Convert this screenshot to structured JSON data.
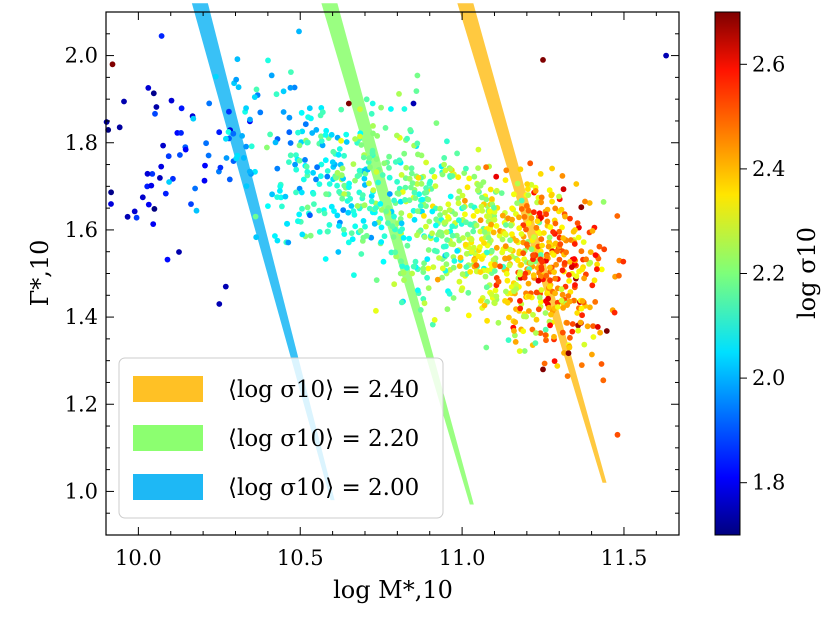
{
  "chart_data": {
    "type": "scatter",
    "xlabel": "log M*,10",
    "ylabel": "Γ*,10",
    "colorbar_label": "log σ10",
    "xlim": [
      9.9,
      11.67
    ],
    "ylim": [
      0.9,
      2.1
    ],
    "color_lim": [
      1.7,
      2.7
    ],
    "colormap": "jet",
    "xticks": [
      "10.0",
      "10.5",
      "11.0",
      "11.5"
    ],
    "yticks": [
      "1.0",
      "1.2",
      "1.4",
      "1.6",
      "1.8",
      "2.0"
    ],
    "colorbar_ticks": [
      "1.8",
      "2.0",
      "2.2",
      "2.4",
      "2.6"
    ],
    "legend_placement": "lower-left",
    "bands": [
      {
        "label": "⟨log σ10⟩ = 2.40",
        "color": "#ffc125",
        "line": [
          [
            11.01,
            2.12
          ],
          [
            11.44,
            1.02
          ]
        ]
      },
      {
        "label": "⟨log σ10⟩ = 2.20",
        "color": "#8cff70",
        "line": [
          [
            10.59,
            2.12
          ],
          [
            11.03,
            0.97
          ]
        ]
      },
      {
        "label": "⟨log σ10⟩ = 2.00",
        "color": "#1eb8f5",
        "line": [
          [
            10.19,
            2.12
          ],
          [
            10.6,
            0.98
          ]
        ]
      }
    ],
    "clusters": [
      {
        "cx": 10.05,
        "cy": 1.78,
        "sx": 0.12,
        "sy": 0.12,
        "c": 1.8,
        "sc": 0.05,
        "n": 45
      },
      {
        "cx": 10.38,
        "cy": 1.77,
        "sx": 0.12,
        "sy": 0.1,
        "c": 2.02,
        "sc": 0.08,
        "n": 90
      },
      {
        "cx": 10.65,
        "cy": 1.72,
        "sx": 0.12,
        "sy": 0.09,
        "c": 2.13,
        "sc": 0.07,
        "n": 220
      },
      {
        "cx": 10.92,
        "cy": 1.62,
        "sx": 0.12,
        "sy": 0.09,
        "c": 2.2,
        "sc": 0.07,
        "n": 240
      },
      {
        "cx": 11.1,
        "cy": 1.56,
        "sx": 0.1,
        "sy": 0.08,
        "c": 2.28,
        "sc": 0.08,
        "n": 220
      },
      {
        "cx": 11.28,
        "cy": 1.5,
        "sx": 0.09,
        "sy": 0.09,
        "c": 2.42,
        "sc": 0.1,
        "n": 340
      }
    ],
    "sample_points": [
      {
        "x": 9.92,
        "y": 1.98,
        "c": 2.7
      },
      {
        "x": 10.65,
        "y": 1.89,
        "c": 2.7
      },
      {
        "x": 11.25,
        "y": 1.99,
        "c": 2.7
      },
      {
        "x": 11.63,
        "y": 2.0,
        "c": 1.75
      },
      {
        "x": 10.27,
        "y": 1.47,
        "c": 1.75
      },
      {
        "x": 11.25,
        "y": 1.28,
        "c": 2.7
      },
      {
        "x": 11.48,
        "y": 1.13,
        "c": 2.5
      },
      {
        "x": 10.85,
        "y": 1.89,
        "c": 1.75
      },
      {
        "x": 10.25,
        "y": 1.43,
        "c": 1.75
      }
    ]
  }
}
